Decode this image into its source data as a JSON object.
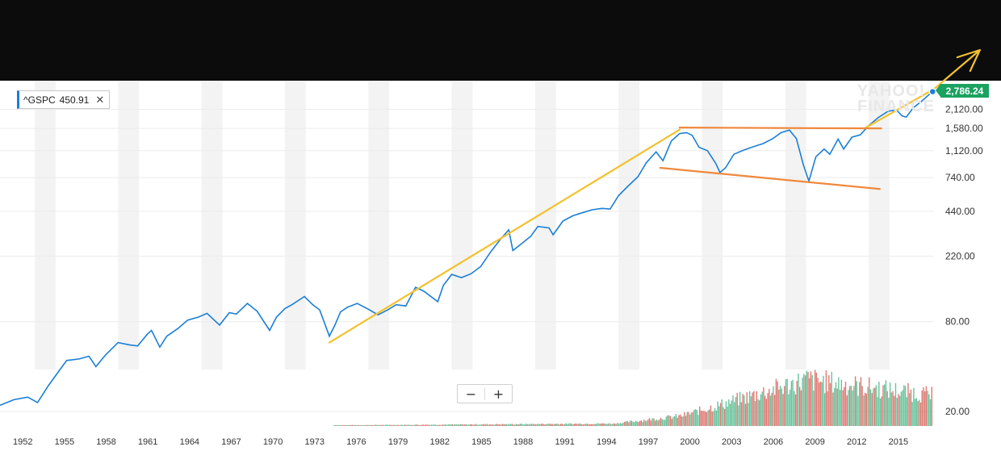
{
  "legend": {
    "symbol": "^GSPC",
    "value": "450.91",
    "close": "✕"
  },
  "watermark": {
    "line1": "YAHOO!",
    "line2": "FINANCE"
  },
  "last_price": "2,786.24",
  "zoom": {
    "minus": "−",
    "plus": "+"
  },
  "colors": {
    "price_line": "#1a7fd6",
    "trend_yellow": "#f2c12e",
    "trend_orange": "#f0883c",
    "volume_up": "#4cb88a",
    "volume_down": "#d9625a",
    "price_tag": "#1aa260",
    "band": "#f3f3f3",
    "top_band": "#0c0c0c"
  },
  "chart_data": {
    "type": "line",
    "scale": "log",
    "x_range": [
      1951,
      2018.2
    ],
    "y_range": [
      16,
      3300
    ],
    "y_ticks": [
      {
        "value": 20,
        "label": "20.00"
      },
      {
        "value": 80,
        "label": "80.00"
      },
      {
        "value": 220,
        "label": "220.00"
      },
      {
        "value": 440,
        "label": "440.00"
      },
      {
        "value": 740,
        "label": "740.00"
      },
      {
        "value": 1120,
        "label": "1,120.00"
      },
      {
        "value": 1580,
        "label": "1,580.00"
      },
      {
        "value": 2120,
        "label": "2,120.00"
      }
    ],
    "x_ticks": [
      "1952",
      "1955",
      "1958",
      "1961",
      "1964",
      "1967",
      "1970",
      "1973",
      "1976",
      "1979",
      "1982",
      "1985",
      "1988",
      "1991",
      "1994",
      "1997",
      "2000",
      "2003",
      "2006",
      "2009",
      "2012",
      "2015"
    ],
    "series": [
      {
        "values": [
          [
            1951.0,
            22
          ],
          [
            1952.0,
            24
          ],
          [
            1953.0,
            25
          ],
          [
            1953.7,
            23
          ],
          [
            1954.5,
            30
          ],
          [
            1955.3,
            38
          ],
          [
            1955.8,
            44
          ],
          [
            1956.7,
            45
          ],
          [
            1957.4,
            47
          ],
          [
            1957.9,
            40
          ],
          [
            1958.6,
            48
          ],
          [
            1959.5,
            58
          ],
          [
            1960.3,
            56
          ],
          [
            1960.9,
            55
          ],
          [
            1961.6,
            66
          ],
          [
            1961.9,
            70
          ],
          [
            1962.5,
            54
          ],
          [
            1963.0,
            64
          ],
          [
            1963.8,
            72
          ],
          [
            1964.5,
            82
          ],
          [
            1965.3,
            86
          ],
          [
            1965.9,
            91
          ],
          [
            1966.8,
            76
          ],
          [
            1967.5,
            92
          ],
          [
            1968.0,
            90
          ],
          [
            1968.8,
            106
          ],
          [
            1969.5,
            94
          ],
          [
            1970.4,
            70
          ],
          [
            1970.9,
            86
          ],
          [
            1971.5,
            98
          ],
          [
            1972.0,
            104
          ],
          [
            1972.9,
            118
          ],
          [
            1973.5,
            104
          ],
          [
            1974.0,
            96
          ],
          [
            1974.7,
            64
          ],
          [
            1975.1,
            76
          ],
          [
            1975.5,
            93
          ],
          [
            1976.0,
            100
          ],
          [
            1976.7,
            106
          ],
          [
            1977.5,
            97
          ],
          [
            1978.2,
            89
          ],
          [
            1978.9,
            96
          ],
          [
            1979.5,
            104
          ],
          [
            1980.2,
            102
          ],
          [
            1980.9,
            136
          ],
          [
            1981.5,
            128
          ],
          [
            1982.5,
            109
          ],
          [
            1982.9,
            140
          ],
          [
            1983.5,
            166
          ],
          [
            1984.2,
            158
          ],
          [
            1984.9,
            168
          ],
          [
            1985.6,
            188
          ],
          [
            1986.3,
            235
          ],
          [
            1987.0,
            285
          ],
          [
            1987.6,
            330
          ],
          [
            1987.9,
            240
          ],
          [
            1988.5,
            265
          ],
          [
            1989.2,
            300
          ],
          [
            1989.7,
            348
          ],
          [
            1990.5,
            340
          ],
          [
            1990.8,
            306
          ],
          [
            1991.5,
            378
          ],
          [
            1992.2,
            410
          ],
          [
            1992.9,
            430
          ],
          [
            1993.6,
            450
          ],
          [
            1994.3,
            460
          ],
          [
            1994.9,
            455
          ],
          [
            1995.5,
            560
          ],
          [
            1996.2,
            650
          ],
          [
            1996.9,
            750
          ],
          [
            1997.5,
            930
          ],
          [
            1998.2,
            1100
          ],
          [
            1998.7,
            960
          ],
          [
            1999.3,
            1300
          ],
          [
            1999.9,
            1460
          ],
          [
            2000.4,
            1480
          ],
          [
            2000.8,
            1420
          ],
          [
            2001.3,
            1180
          ],
          [
            2001.9,
            1120
          ],
          [
            2002.5,
            920
          ],
          [
            2002.8,
            800
          ],
          [
            2003.2,
            860
          ],
          [
            2003.8,
            1060
          ],
          [
            2004.5,
            1130
          ],
          [
            2005.2,
            1190
          ],
          [
            2005.9,
            1250
          ],
          [
            2006.6,
            1350
          ],
          [
            2007.2,
            1480
          ],
          [
            2007.8,
            1540
          ],
          [
            2008.3,
            1350
          ],
          [
            2008.8,
            900
          ],
          [
            2009.2,
            700
          ],
          [
            2009.7,
            1020
          ],
          [
            2010.3,
            1150
          ],
          [
            2010.7,
            1060
          ],
          [
            2011.3,
            1340
          ],
          [
            2011.7,
            1150
          ],
          [
            2012.3,
            1380
          ],
          [
            2012.9,
            1430
          ],
          [
            2013.5,
            1650
          ],
          [
            2014.2,
            1870
          ],
          [
            2014.9,
            2060
          ],
          [
            2015.5,
            2100
          ],
          [
            2015.9,
            1920
          ],
          [
            2016.2,
            1880
          ],
          [
            2016.7,
            2170
          ],
          [
            2017.3,
            2400
          ],
          [
            2017.9,
            2690
          ],
          [
            2018.1,
            2786.24
          ]
        ]
      }
    ],
    "volume": {
      "start_year": 1975,
      "end_year": 2018,
      "peak_year": 2009,
      "up_color": "#4cb88a",
      "down_color": "#d9625a"
    },
    "annotations": [
      {
        "type": "trendline",
        "color": "#f2c12e",
        "from": [
          1974.7,
          58
        ],
        "to": [
          1999.9,
          1550
        ]
      },
      {
        "type": "trendline",
        "color": "#f2c12e",
        "from": [
          2013.3,
          1600
        ],
        "to": [
          2018.2,
          2900
        ],
        "arrow_to": [
          2021.5,
          3900
        ]
      },
      {
        "type": "resistance",
        "color": "#f0883c",
        "from": [
          1999.9,
          1600
        ],
        "to": [
          2014.4,
          1580
        ]
      },
      {
        "type": "support",
        "color": "#f0883c",
        "from": [
          1998.5,
          860
        ],
        "to": [
          2014.3,
          620
        ]
      }
    ]
  }
}
